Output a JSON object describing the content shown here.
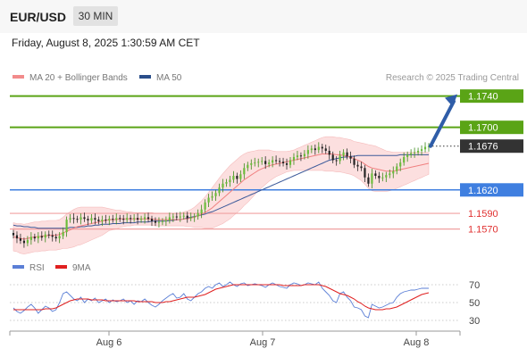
{
  "header": {
    "symbol": "EUR/USD",
    "timeframe": "30 MIN"
  },
  "datetime": "Friday, August 8, 2025 1:30:59 AM CET",
  "legend": [
    {
      "label": "MA 20 + Bollinger Bands",
      "color": "#f28b8b"
    },
    {
      "label": "MA 50",
      "color": "#2a4e8a"
    }
  ],
  "copyright": "Research © 2025 Trading Central",
  "chart_data": [
    {
      "type": "candlestick",
      "x_ticks": [
        "Aug 6",
        "Aug 7",
        "Aug 8"
      ],
      "ylim": [
        1.1541,
        1.1751
      ],
      "current_price": {
        "value": 1.1676,
        "label": "1.1676"
      },
      "levels": [
        {
          "value": 1.174,
          "label": "1.1740",
          "kind": "resistance"
        },
        {
          "value": 1.17,
          "label": "1.1700",
          "kind": "resistance"
        },
        {
          "value": 1.162,
          "label": "1.1620",
          "kind": "pivot"
        },
        {
          "value": 1.159,
          "label": "1.1590",
          "kind": "support"
        },
        {
          "value": 1.157,
          "label": "1.1570",
          "kind": "support"
        }
      ],
      "close_series": [
        1.1562,
        1.1558,
        1.1555,
        1.1552,
        1.1556,
        1.156,
        1.1558,
        1.1561,
        1.1559,
        1.1563,
        1.1562,
        1.156,
        1.1558,
        1.1561,
        1.1566,
        1.1582,
        1.1584,
        1.1583,
        1.1582,
        1.1585,
        1.1583,
        1.1581,
        1.1584,
        1.1582,
        1.158,
        1.1582,
        1.1581,
        1.1583,
        1.1582,
        1.1584,
        1.1583,
        1.1582,
        1.1584,
        1.1583,
        1.1584,
        1.1582,
        1.1583,
        1.1585,
        1.1583,
        1.158,
        1.1578,
        1.1579,
        1.158,
        1.1581,
        1.1585,
        1.1586,
        1.1585,
        1.1586,
        1.1587,
        1.1584,
        1.1585,
        1.1586,
        1.159,
        1.1595,
        1.1604,
        1.161,
        1.1612,
        1.1616,
        1.1623,
        1.1628,
        1.163,
        1.1633,
        1.1638,
        1.1634,
        1.164,
        1.1648,
        1.1652,
        1.1654,
        1.1655,
        1.1656,
        1.1657,
        1.1653,
        1.1655,
        1.1658,
        1.1657,
        1.1656,
        1.1654,
        1.1652,
        1.1658,
        1.1662,
        1.1664,
        1.1663,
        1.1666,
        1.1671,
        1.1673,
        1.1671,
        1.1675,
        1.1673,
        1.167,
        1.1665,
        1.1658,
        1.1657,
        1.1664,
        1.1668,
        1.1663,
        1.166,
        1.1652,
        1.165,
        1.1648,
        1.1636,
        1.1628,
        1.1641,
        1.1638,
        1.1635,
        1.1636,
        1.1639,
        1.1641,
        1.1644,
        1.165,
        1.1655,
        1.1662,
        1.1665,
        1.1667,
        1.1668,
        1.167,
        1.1672,
        1.1675,
        1.1676
      ],
      "ma20": [
        1.156,
        1.1559,
        1.1558,
        1.1557,
        1.1558,
        1.1559,
        1.156,
        1.156,
        1.1561,
        1.1561,
        1.1562,
        1.1562,
        1.1562,
        1.1563,
        1.1565,
        1.1567,
        1.1569,
        1.1571,
        1.1573,
        1.1574,
        1.1575,
        1.1576,
        1.1577,
        1.1578,
        1.1579,
        1.158,
        1.1581,
        1.1582,
        1.1582,
        1.1582,
        1.1583,
        1.1583,
        1.1583,
        1.1583,
        1.1583,
        1.1583,
        1.1583,
        1.1583,
        1.1583,
        1.1583,
        1.1582,
        1.1582,
        1.1582,
        1.1582,
        1.1582,
        1.1582,
        1.1582,
        1.1582,
        1.1583,
        1.1583,
        1.1584,
        1.1585,
        1.1587,
        1.1589,
        1.1591,
        1.1594,
        1.1597,
        1.1601,
        1.1605,
        1.1609,
        1.1613,
        1.1617,
        1.1621,
        1.1625,
        1.1629,
        1.1633,
        1.1636,
        1.1639,
        1.1642,
        1.1645,
        1.1647,
        1.1649,
        1.1651,
        1.1652,
        1.1653,
        1.1654,
        1.1655,
        1.1656,
        1.1657,
        1.1658,
        1.1659,
        1.166,
        1.1661,
        1.1662,
        1.1663,
        1.1664,
        1.1665,
        1.1666,
        1.1666,
        1.1666,
        1.1666,
        1.1665,
        1.1665,
        1.1664,
        1.1663,
        1.1662,
        1.166,
        1.1658,
        1.1656,
        1.1653,
        1.165,
        1.1648,
        1.1647,
        1.1646,
        1.1645,
        1.1644,
        1.1644,
        1.1644,
        1.1645,
        1.1646,
        1.1647,
        1.1648,
        1.1649,
        1.165,
        1.1651,
        1.1652,
        1.1653,
        1.1654
      ],
      "ma50": [
        1.1575,
        1.1574,
        1.1574,
        1.1573,
        1.1573,
        1.1572,
        1.1572,
        1.1571,
        1.1571,
        1.1571,
        1.1571,
        1.1571,
        1.1571,
        1.1571,
        1.1571,
        1.1571,
        1.1572,
        1.1572,
        1.1572,
        1.1573,
        1.1573,
        1.1574,
        1.1574,
        1.1575,
        1.1575,
        1.1576,
        1.1576,
        1.1576,
        1.1577,
        1.1577,
        1.1577,
        1.1578,
        1.1578,
        1.1578,
        1.1578,
        1.1579,
        1.1579,
        1.1579,
        1.1579,
        1.158,
        1.158,
        1.158,
        1.158,
        1.158,
        1.1581,
        1.1581,
        1.1582,
        1.1582,
        1.1583,
        1.1584,
        1.1585,
        1.1586,
        1.1587,
        1.1588,
        1.1589,
        1.1591,
        1.1592,
        1.1594,
        1.1596,
        1.1598,
        1.16,
        1.1602,
        1.1604,
        1.1606,
        1.1608,
        1.161,
        1.1612,
        1.1614,
        1.1616,
        1.1618,
        1.162,
        1.1622,
        1.1624,
        1.1626,
        1.1628,
        1.163,
        1.1632,
        1.1634,
        1.1636,
        1.1638,
        1.164,
        1.1642,
        1.1644,
        1.1646,
        1.1648,
        1.165,
        1.1652,
        1.1654,
        1.1656,
        1.1658,
        1.1659,
        1.166,
        1.1661,
        1.1662,
        1.1662,
        1.1663,
        1.1663,
        1.1664,
        1.1664,
        1.1664,
        1.1664,
        1.1664,
        1.1664,
        1.1664,
        1.1664,
        1.1664,
        1.1664,
        1.1664,
        1.1664,
        1.1665,
        1.1665,
        1.1665,
        1.1665,
        1.1665,
        1.1665,
        1.1665,
        1.1665,
        1.1665
      ],
      "bollinger_width": [
        0.0018,
        0.0018,
        0.0019,
        0.0019,
        0.0019,
        0.0019,
        0.0019,
        0.0019,
        0.0019,
        0.0019,
        0.0019,
        0.0019,
        0.0019,
        0.0019,
        0.002,
        0.0022,
        0.0023,
        0.0024,
        0.0024,
        0.0024,
        0.0023,
        0.0022,
        0.0021,
        0.002,
        0.0019,
        0.0018,
        0.0016,
        0.0014,
        0.0013,
        0.0012,
        0.0011,
        0.001,
        0.0009,
        0.0009,
        0.0008,
        0.0008,
        0.0008,
        0.0008,
        0.0008,
        0.0008,
        0.0008,
        0.0008,
        0.0008,
        0.0008,
        0.0008,
        0.0008,
        0.0008,
        0.0008,
        0.0009,
        0.001,
        0.0011,
        0.0013,
        0.0015,
        0.0017,
        0.002,
        0.0023,
        0.0026,
        0.0028,
        0.003,
        0.0032,
        0.0033,
        0.0034,
        0.0034,
        0.0034,
        0.0034,
        0.0033,
        0.0032,
        0.003,
        0.0028,
        0.0026,
        0.0024,
        0.0022,
        0.002,
        0.0018,
        0.0016,
        0.0015,
        0.0014,
        0.0013,
        0.0013,
        0.0013,
        0.0014,
        0.0015,
        0.0016,
        0.0017,
        0.0018,
        0.0019,
        0.002,
        0.0021,
        0.0022,
        0.0022,
        0.0022,
        0.0022,
        0.0022,
        0.0022,
        0.0022,
        0.0022,
        0.0022,
        0.0023,
        0.0024,
        0.0026,
        0.0028,
        0.0029,
        0.0029,
        0.0028,
        0.0027,
        0.0026,
        0.0025,
        0.0024,
        0.0023,
        0.0022,
        0.0021,
        0.002,
        0.0019,
        0.0018,
        0.0017,
        0.0016,
        0.0015,
        0.0014,
        0.0013
      ],
      "forecast_arrow": {
        "from": 1.1676,
        "to": 1.174
      }
    },
    {
      "type": "line",
      "legend": [
        {
          "label": "RSI",
          "color": "#5b7fd6"
        },
        {
          "label": "9MA",
          "color": "#e02020"
        }
      ],
      "y_ticks": [
        70,
        50,
        30
      ],
      "ylim": [
        20,
        80
      ],
      "rsi": [
        44,
        40,
        38,
        41,
        45,
        48,
        44,
        38,
        42,
        46,
        44,
        40,
        42,
        50,
        60,
        62,
        58,
        54,
        52,
        56,
        50,
        54,
        52,
        55,
        50,
        52,
        54,
        50,
        53,
        51,
        52,
        54,
        50,
        52,
        48,
        52,
        51,
        54,
        50,
        47,
        45,
        48,
        52,
        55,
        58,
        60,
        55,
        56,
        60,
        54,
        52,
        56,
        60,
        62,
        66,
        68,
        66,
        70,
        72,
        68,
        70,
        73,
        70,
        68,
        71,
        72,
        69,
        70,
        71,
        70,
        69,
        67,
        70,
        72,
        70,
        68,
        67,
        66,
        70,
        72,
        71,
        69,
        70,
        72,
        71,
        70,
        73,
        66,
        62,
        58,
        52,
        50,
        60,
        62,
        56,
        52,
        45,
        44,
        42,
        35,
        33,
        48,
        46,
        44,
        45,
        47,
        49,
        50,
        56,
        60,
        62,
        63,
        64,
        64,
        65,
        66,
        66,
        66
      ],
      "ma9": [
        42,
        42,
        42,
        42,
        42,
        42,
        42,
        42,
        42,
        43,
        43,
        43,
        44,
        46,
        48,
        50,
        52,
        53,
        54,
        54,
        54,
        54,
        53,
        53,
        53,
        53,
        52,
        52,
        52,
        52,
        52,
        52,
        52,
        52,
        52,
        51,
        51,
        51,
        51,
        51,
        50,
        50,
        50,
        51,
        51,
        52,
        53,
        54,
        55,
        56,
        56,
        56,
        57,
        58,
        59,
        61,
        63,
        65,
        66,
        67,
        68,
        69,
        70,
        70,
        70,
        70,
        70,
        70,
        70,
        70,
        70,
        70,
        70,
        70,
        70,
        70,
        69,
        69,
        69,
        69,
        69,
        69,
        70,
        70,
        70,
        70,
        70,
        69,
        68,
        66,
        64,
        62,
        60,
        59,
        58,
        56,
        54,
        51,
        49,
        46,
        44,
        43,
        42,
        42,
        42,
        43,
        43,
        44,
        45,
        47,
        49,
        51,
        53,
        55,
        57,
        59,
        60,
        61
      ]
    }
  ]
}
